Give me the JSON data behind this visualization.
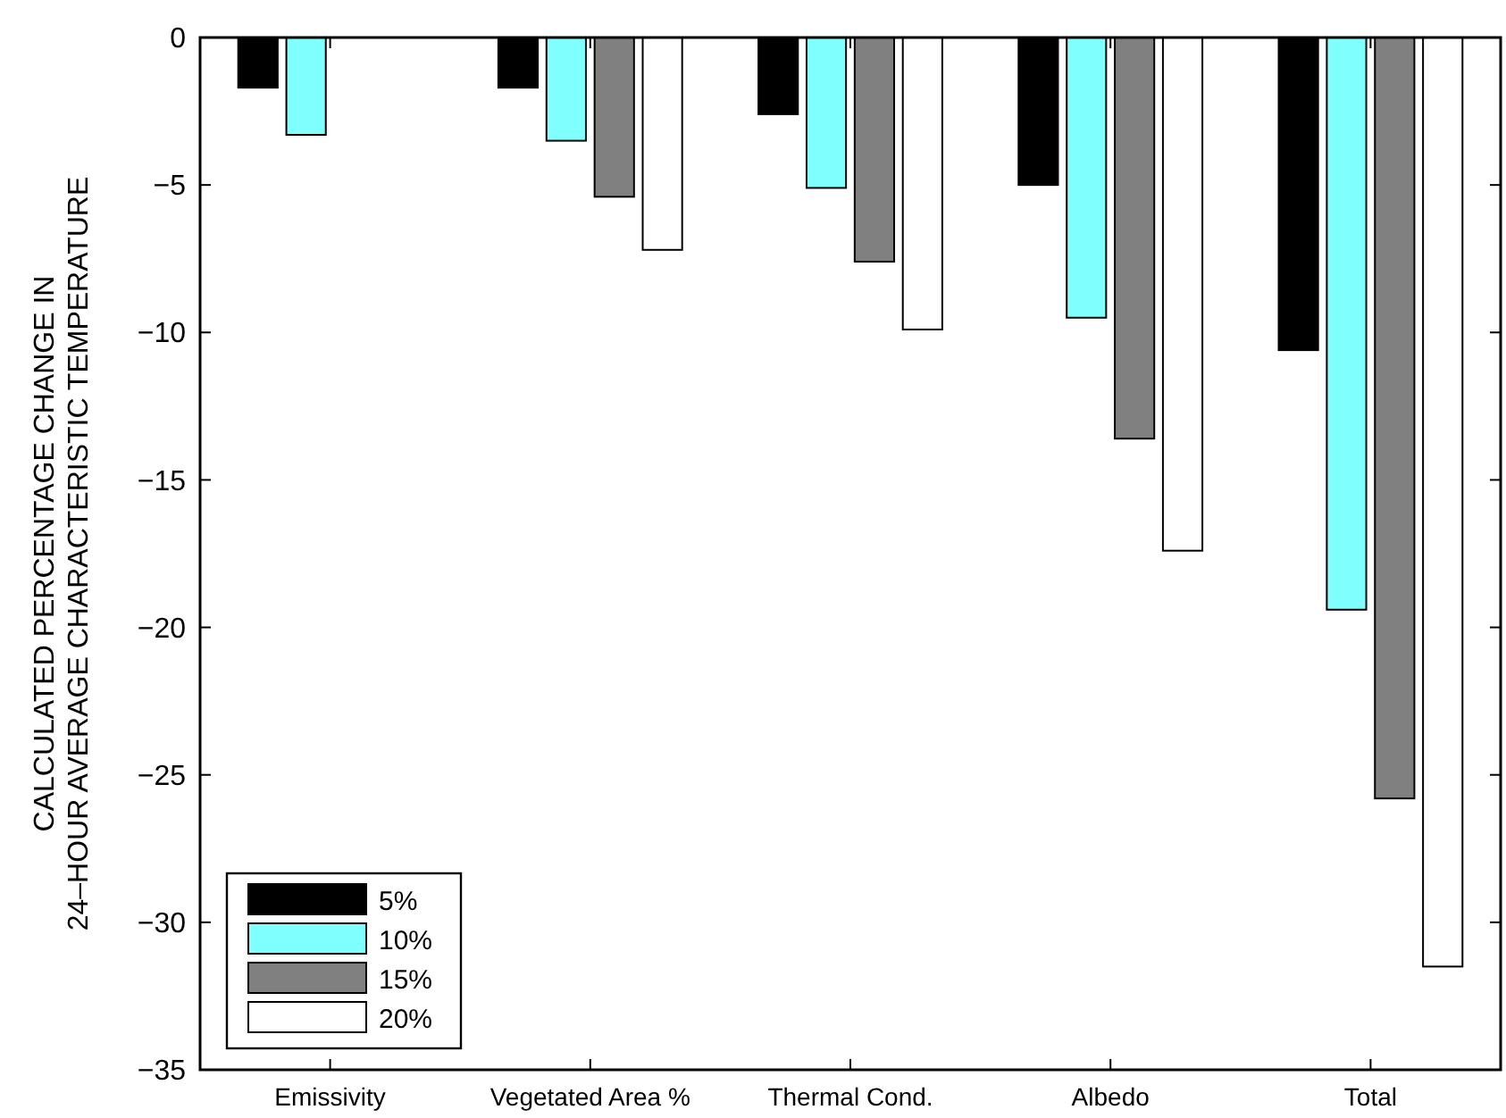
{
  "chart_data": {
    "type": "bar",
    "ylabel": "CALCULATED PERCENTAGE CHANGE IN\n24–HOUR AVERAGE CHARACTERISTIC TEMPERATURE",
    "categories": [
      "Emissivity",
      "Vegetated Area %",
      "Thermal Cond.",
      "Albedo",
      "Total"
    ],
    "series": [
      {
        "name": "5%",
        "color": "#000000",
        "values": [
          -1.7,
          -1.7,
          -2.6,
          -5.0,
          -10.6
        ]
      },
      {
        "name": "10%",
        "color": "#80ffff",
        "values": [
          -3.3,
          -3.5,
          -5.1,
          -9.5,
          -19.4
        ]
      },
      {
        "name": "15%",
        "color": "#808080",
        "values": [
          0,
          -5.4,
          -7.6,
          -13.6,
          -25.8
        ]
      },
      {
        "name": "20%",
        "color": "#ffffff",
        "values": [
          0,
          -7.2,
          -9.9,
          -17.4,
          -31.5
        ]
      }
    ],
    "ylim": [
      -35,
      0
    ],
    "yticks": [
      -35,
      -30,
      -25,
      -20,
      -15,
      -10,
      -5,
      0
    ],
    "grid": false,
    "legend": "bottom left"
  }
}
